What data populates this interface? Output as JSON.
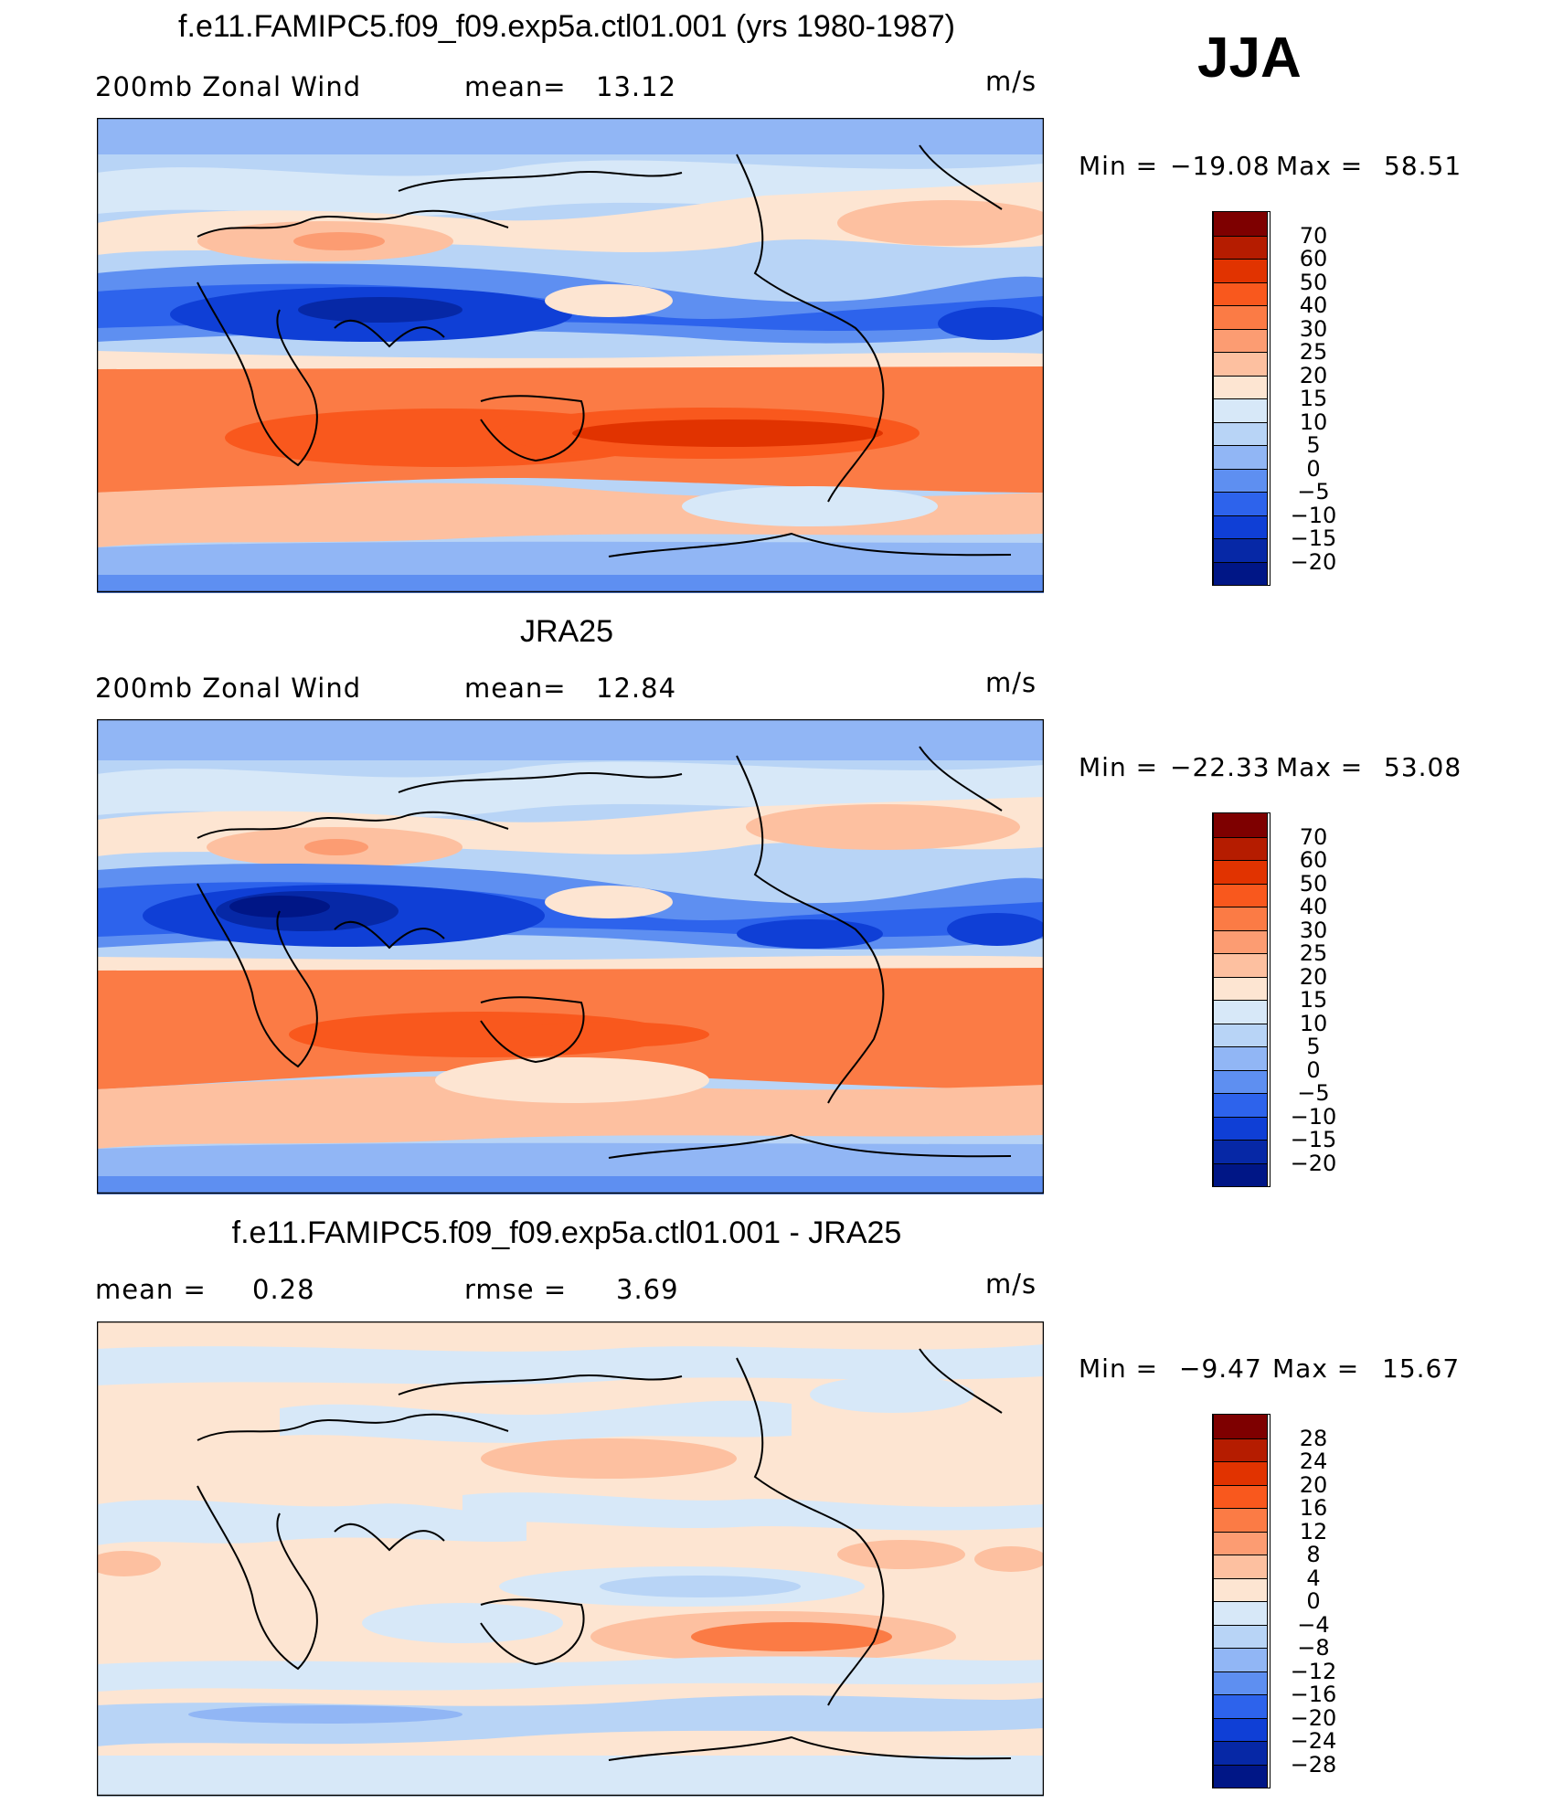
{
  "season": "JJA",
  "panels": [
    {
      "title": "f.e11.FAMIPC5.f09_f09.exp5a.ctl01.001 (yrs 1980-1987)",
      "left_label": "200mb  Zonal  Wind",
      "mid_label": "mean=",
      "mid_value": "13.12",
      "units": "m/s",
      "min_label": "Min  =",
      "min_value": "−19.08",
      "max_label": "Max  =",
      "max_value": "58.51",
      "colorbar_ticks": [
        "70",
        "60",
        "50",
        "40",
        "30",
        "25",
        "20",
        "15",
        "10",
        "5",
        "0",
        "−5",
        "−10",
        "−15",
        "−20"
      ]
    },
    {
      "title": "JRA25",
      "left_label": "200mb  Zonal  Wind",
      "mid_label": "mean=",
      "mid_value": "12.84",
      "units": "m/s",
      "min_label": "Min  =",
      "min_value": "−22.33",
      "max_label": "Max  =",
      "max_value": "53.08",
      "colorbar_ticks": [
        "70",
        "60",
        "50",
        "40",
        "30",
        "25",
        "20",
        "15",
        "10",
        "5",
        "0",
        "−5",
        "−10",
        "−15",
        "−20"
      ]
    },
    {
      "title": "f.e11.FAMIPC5.f09_f09.exp5a.ctl01.001 - JRA25",
      "left_label": "mean  =",
      "left_value": "0.28",
      "mid_label": "rmse  =",
      "mid_value": "3.69",
      "units": "m/s",
      "min_label": "Min  =",
      "min_value": "−9.47",
      "max_label": "Max  =",
      "max_value": "15.67",
      "colorbar_ticks": [
        "28",
        "24",
        "20",
        "16",
        "12",
        "8",
        "4",
        "0",
        "−4",
        "−8",
        "−12",
        "−16",
        "−20",
        "−24",
        "−28"
      ]
    }
  ],
  "colors": {
    "scale": [
      "#7e0000",
      "#b51c00",
      "#e13300",
      "#f9581d",
      "#fb7b45",
      "#fc9c72",
      "#fdc0a0",
      "#fde5d2",
      "#d7e8f8",
      "#b8d4f6",
      "#91b6f5",
      "#5e8ff1",
      "#2d63ec",
      "#0f3fd6",
      "#0628a6",
      "#001686"
    ],
    "land_line": "#000000"
  }
}
